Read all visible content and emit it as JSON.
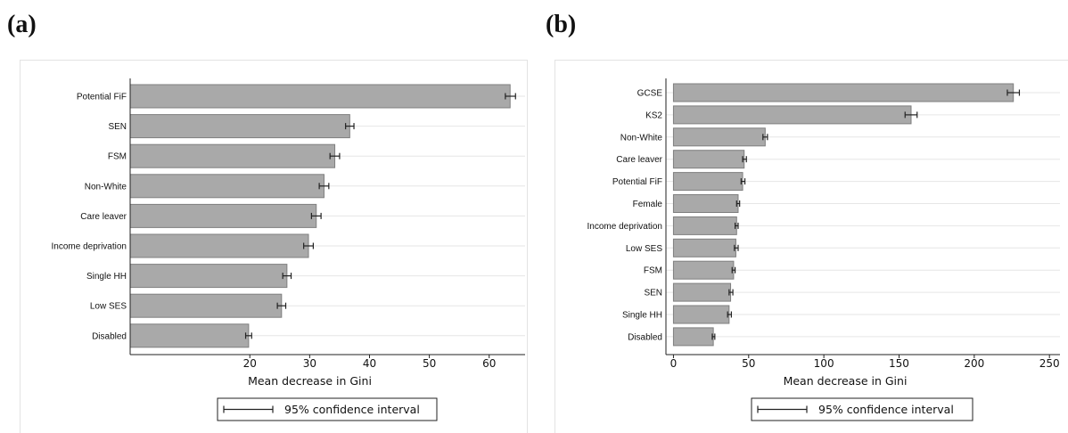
{
  "chart_data": [
    {
      "panel_label": "(a)",
      "type": "bar",
      "orientation": "horizontal",
      "categories": [
        "Potential FiF",
        "SEN",
        "FSM",
        "Non-White",
        "Care leaver",
        "Income deprivation",
        "Single HH",
        "Low SES",
        "Disabled"
      ],
      "values": [
        63.5,
        36.7,
        34.2,
        32.4,
        31.1,
        29.8,
        26.2,
        25.3,
        19.8
      ],
      "ci_low": [
        62.7,
        36.0,
        33.4,
        31.6,
        30.3,
        29.0,
        25.5,
        24.6,
        19.3
      ],
      "ci_high": [
        64.4,
        37.4,
        35.0,
        33.2,
        31.9,
        30.6,
        26.9,
        26.0,
        20.3
      ],
      "xlabel": "Mean decrease in Gini",
      "xticks": [
        "20",
        "30",
        "40",
        "50",
        "60"
      ],
      "xlim": [
        0,
        66
      ],
      "grid": true,
      "legend": "95% confidence interval",
      "legend_position": "bottom"
    },
    {
      "panel_label": "(b)",
      "type": "bar",
      "orientation": "horizontal",
      "categories": [
        "GCSE",
        "KS2",
        "Non-White",
        "Care leaver",
        "Potential FiF",
        "Female",
        "Income deprivation",
        "Low SES",
        "FSM",
        "SEN",
        "Single HH",
        "Disabled"
      ],
      "values": [
        226,
        158,
        61,
        47,
        46,
        43,
        42,
        41.5,
        40,
        38,
        37,
        26.5
      ],
      "ci_low": [
        222,
        154,
        59.5,
        46,
        45,
        42,
        41,
        40.5,
        39,
        37,
        36,
        25.8
      ],
      "ci_high": [
        230,
        162,
        62.5,
        48.5,
        47.5,
        44,
        43,
        43,
        41,
        39.5,
        38.5,
        27.5
      ],
      "xlabel": "Mean decrease in Gini",
      "xticks": [
        "0",
        "50",
        "100",
        "150",
        "200",
        "250"
      ],
      "xlim": [
        -5,
        257
      ],
      "grid": true,
      "legend": "95% confidence interval",
      "legend_position": "bottom"
    }
  ]
}
